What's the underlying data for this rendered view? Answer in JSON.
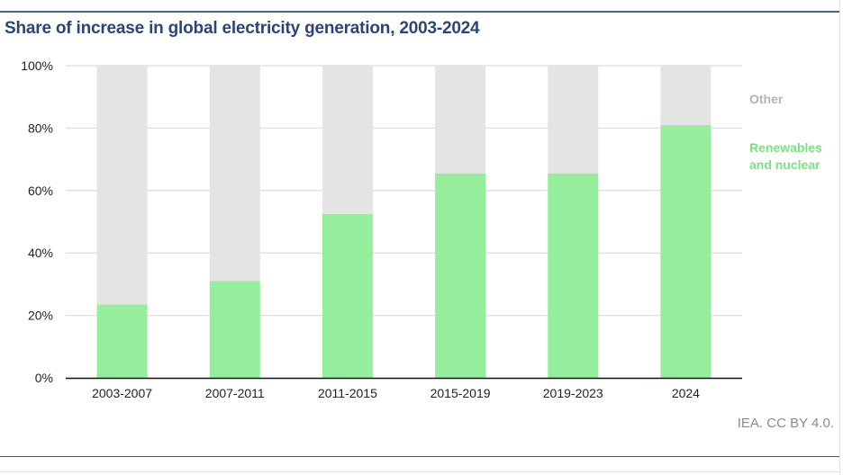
{
  "title": "Share of increase in global electricity generation, 2003-2024",
  "source": "IEA. CC BY 4.0.",
  "chart_data": {
    "type": "bar",
    "stacked": true,
    "percent": true,
    "title": "Share of increase in global electricity generation, 2003-2024",
    "xlabel": "",
    "ylabel": "",
    "categories": [
      "2003-2007",
      "2007-2011",
      "2011-2015",
      "2015-2019",
      "2019-2023",
      "2024"
    ],
    "series": [
      {
        "name": "Renewables and nuclear",
        "color": "#94ee9c",
        "values": [
          23.5,
          31,
          52.5,
          65.5,
          65.5,
          81
        ]
      },
      {
        "name": "Other",
        "color": "#e4e4e4",
        "values": [
          76.5,
          69,
          47.5,
          34.5,
          34.5,
          19
        ]
      }
    ],
    "ylim": [
      0,
      100
    ],
    "yticks": [
      0,
      20,
      40,
      60,
      80,
      100
    ],
    "ytick_labels": [
      "0%",
      "20%",
      "40%",
      "60%",
      "80%",
      "100%"
    ],
    "grid": true,
    "legend": [
      {
        "label": "Other",
        "color": "#b4b4b4"
      },
      {
        "label_lines": [
          "Renewables",
          "and nuclear"
        ],
        "color": "#7ae27f"
      }
    ],
    "legend_position": "right"
  }
}
